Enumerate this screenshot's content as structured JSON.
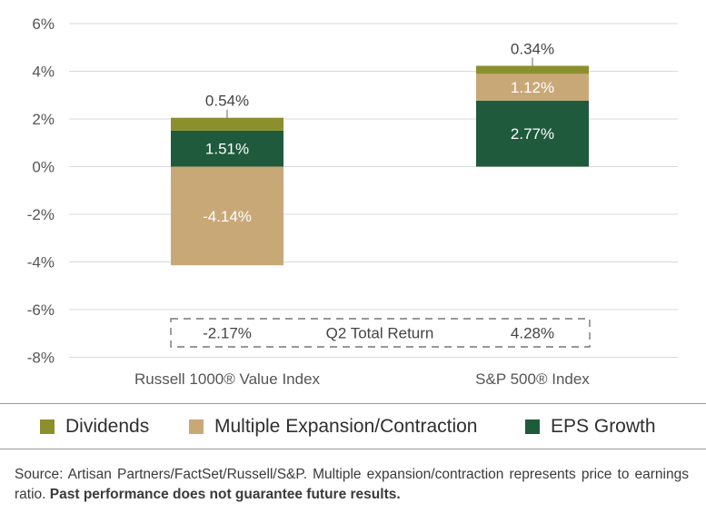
{
  "chart_data": {
    "type": "bar",
    "stacked": true,
    "categories": [
      "Russell 1000® Value Index",
      "S&P 500® Index"
    ],
    "series": [
      {
        "name": "EPS Growth",
        "color": "#1f5a3c",
        "values": [
          1.51,
          2.77
        ],
        "labels": [
          "1.51%",
          "2.77%"
        ]
      },
      {
        "name": "Multiple Expansion/Contraction",
        "color": "#c9a878",
        "values": [
          -4.14,
          1.12
        ],
        "labels": [
          "-4.14%",
          "1.12%"
        ]
      },
      {
        "name": "Dividends",
        "color": "#8c8f2e",
        "values": [
          0.54,
          0.34
        ],
        "labels": [
          "0.54%",
          "0.34%"
        ]
      }
    ],
    "yticks": [
      "6%",
      "4%",
      "2%",
      "0%",
      "-2%",
      "-4%",
      "-6%",
      "-8%"
    ],
    "ylim": [
      -8,
      6
    ],
    "grid": true,
    "total_return": {
      "label": "Q2 Total Return",
      "values": [
        "-2.17%",
        "4.28%"
      ]
    },
    "legend": [
      {
        "name": "Dividends",
        "color": "#8c8f2e"
      },
      {
        "name": "Multiple Expansion/Contraction",
        "color": "#c9a878"
      },
      {
        "name": "EPS Growth",
        "color": "#1f5a3c"
      }
    ],
    "legend_position": "bottom"
  },
  "footer": {
    "source": "Source: Artisan Partners/FactSet/Russell/S&P. Multiple expansion/contraction represents price to earnings ratio.",
    "disclaimer": "Past performance does not guarantee future results."
  }
}
